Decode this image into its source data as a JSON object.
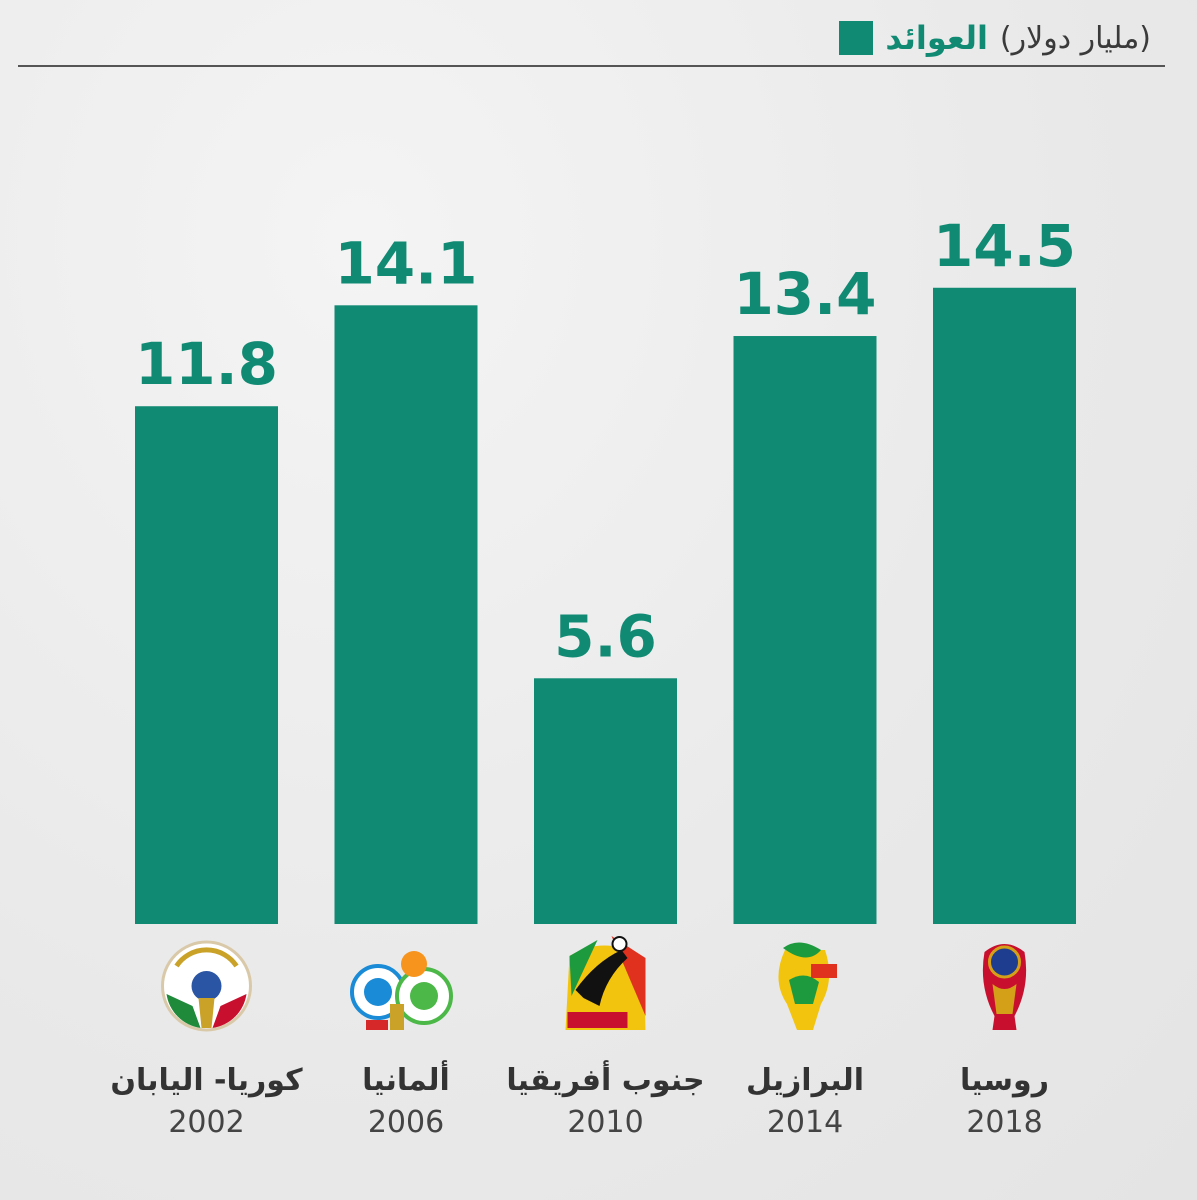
{
  "legend": {
    "label": "العوائد",
    "unit": "(مليار دولار)",
    "color": "#118a74"
  },
  "chart_data": {
    "type": "bar",
    "categories": [
      "كوريا- اليابان",
      "ألمانيا",
      "جنوب أفريقيا",
      "البرازيل",
      "روسيا"
    ],
    "years": [
      "2002",
      "2006",
      "2010",
      "2014",
      "2018"
    ],
    "values": [
      11.8,
      14.1,
      5.6,
      13.4,
      14.5
    ],
    "value_labels": [
      "11.8",
      "14.1",
      "5.6",
      "13.4",
      "14.5"
    ],
    "logos": [
      "world-cup-2002-logo",
      "world-cup-2006-logo",
      "world-cup-2010-logo",
      "world-cup-2014-logo",
      "world-cup-2018-logo"
    ],
    "title": "",
    "xlabel": "",
    "ylabel": "",
    "ylim": [
      0,
      16.5
    ],
    "grid": false,
    "bar_color": "#118a74"
  }
}
